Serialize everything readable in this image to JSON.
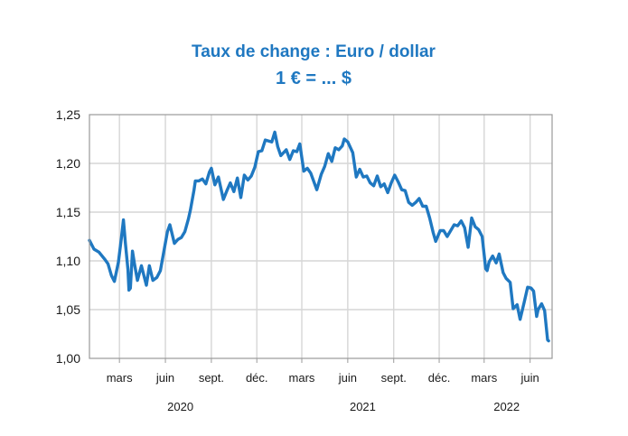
{
  "chart_data": {
    "type": "line",
    "title": "Taux de change : Euro / dollar",
    "subtitle": "1 € = ... $",
    "ylim": [
      1.0,
      1.25
    ],
    "yticks": [
      "1,00",
      "1,05",
      "1,10",
      "1,15",
      "1,20",
      "1,25"
    ],
    "grid": true,
    "x_month_labels": [
      {
        "label": "mars",
        "date": "2020-03-01"
      },
      {
        "label": "juin",
        "date": "2020-06-01"
      },
      {
        "label": "sept.",
        "date": "2020-09-01"
      },
      {
        "label": "déc.",
        "date": "2020-12-01"
      },
      {
        "label": "mars",
        "date": "2021-03-01"
      },
      {
        "label": "juin",
        "date": "2021-06-01"
      },
      {
        "label": "sept.",
        "date": "2021-09-01"
      },
      {
        "label": "déc.",
        "date": "2021-12-01"
      },
      {
        "label": "mars",
        "date": "2022-03-01"
      },
      {
        "label": "juin",
        "date": "2022-06-01"
      }
    ],
    "x_year_labels": [
      {
        "label": "2020",
        "date": "2020-07-01"
      },
      {
        "label": "2021",
        "date": "2021-07-01"
      },
      {
        "label": "2022",
        "date": "2022-04-15"
      }
    ],
    "xlim": [
      "2020-01-01",
      "2022-07-15"
    ],
    "series": [
      {
        "color": "#1f78c1",
        "points": [
          [
            "2020-01-01",
            1.121
          ],
          [
            "2020-01-10",
            1.112
          ],
          [
            "2020-01-20",
            1.109
          ],
          [
            "2020-01-31",
            1.102
          ],
          [
            "2020-02-07",
            1.097
          ],
          [
            "2020-02-14",
            1.085
          ],
          [
            "2020-02-20",
            1.079
          ],
          [
            "2020-02-28",
            1.099
          ],
          [
            "2020-03-05",
            1.124
          ],
          [
            "2020-03-09",
            1.142
          ],
          [
            "2020-03-13",
            1.118
          ],
          [
            "2020-03-18",
            1.091
          ],
          [
            "2020-03-20",
            1.07
          ],
          [
            "2020-03-23",
            1.072
          ],
          [
            "2020-03-27",
            1.11
          ],
          [
            "2020-03-31",
            1.097
          ],
          [
            "2020-04-06",
            1.08
          ],
          [
            "2020-04-14",
            1.095
          ],
          [
            "2020-04-24",
            1.075
          ],
          [
            "2020-04-30",
            1.095
          ],
          [
            "2020-05-07",
            1.08
          ],
          [
            "2020-05-15",
            1.083
          ],
          [
            "2020-05-22",
            1.09
          ],
          [
            "2020-05-29",
            1.11
          ],
          [
            "2020-06-05",
            1.13
          ],
          [
            "2020-06-10",
            1.137
          ],
          [
            "2020-06-19",
            1.118
          ],
          [
            "2020-06-26",
            1.122
          ],
          [
            "2020-07-03",
            1.124
          ],
          [
            "2020-07-10",
            1.13
          ],
          [
            "2020-07-17",
            1.143
          ],
          [
            "2020-07-21",
            1.152
          ],
          [
            "2020-07-28",
            1.172
          ],
          [
            "2020-07-31",
            1.182
          ],
          [
            "2020-08-07",
            1.182
          ],
          [
            "2020-08-14",
            1.184
          ],
          [
            "2020-08-21",
            1.179
          ],
          [
            "2020-08-28",
            1.191
          ],
          [
            "2020-09-01",
            1.195
          ],
          [
            "2020-09-08",
            1.178
          ],
          [
            "2020-09-15",
            1.186
          ],
          [
            "2020-09-25",
            1.163
          ],
          [
            "2020-10-02",
            1.172
          ],
          [
            "2020-10-09",
            1.18
          ],
          [
            "2020-10-16",
            1.171
          ],
          [
            "2020-10-23",
            1.185
          ],
          [
            "2020-10-30",
            1.165
          ],
          [
            "2020-11-06",
            1.188
          ],
          [
            "2020-11-13",
            1.183
          ],
          [
            "2020-11-20",
            1.187
          ],
          [
            "2020-11-27",
            1.196
          ],
          [
            "2020-12-04",
            1.212
          ],
          [
            "2020-12-11",
            1.213
          ],
          [
            "2020-12-18",
            1.224
          ],
          [
            "2020-12-31",
            1.222
          ],
          [
            "2021-01-06",
            1.232
          ],
          [
            "2021-01-12",
            1.217
          ],
          [
            "2021-01-18",
            1.208
          ],
          [
            "2021-01-29",
            1.214
          ],
          [
            "2021-02-05",
            1.204
          ],
          [
            "2021-02-12",
            1.213
          ],
          [
            "2021-02-19",
            1.212
          ],
          [
            "2021-02-25",
            1.22
          ],
          [
            "2021-03-05",
            1.192
          ],
          [
            "2021-03-12",
            1.195
          ],
          [
            "2021-03-19",
            1.19
          ],
          [
            "2021-03-31",
            1.173
          ],
          [
            "2021-04-09",
            1.189
          ],
          [
            "2021-04-16",
            1.197
          ],
          [
            "2021-04-23",
            1.21
          ],
          [
            "2021-04-30",
            1.202
          ],
          [
            "2021-05-07",
            1.216
          ],
          [
            "2021-05-14",
            1.214
          ],
          [
            "2021-05-21",
            1.218
          ],
          [
            "2021-05-25",
            1.225
          ],
          [
            "2021-06-01",
            1.222
          ],
          [
            "2021-06-11",
            1.211
          ],
          [
            "2021-06-18",
            1.186
          ],
          [
            "2021-06-25",
            1.194
          ],
          [
            "2021-07-02",
            1.186
          ],
          [
            "2021-07-09",
            1.187
          ],
          [
            "2021-07-16",
            1.18
          ],
          [
            "2021-07-23",
            1.177
          ],
          [
            "2021-07-30",
            1.187
          ],
          [
            "2021-08-06",
            1.176
          ],
          [
            "2021-08-13",
            1.179
          ],
          [
            "2021-08-20",
            1.17
          ],
          [
            "2021-08-27",
            1.18
          ],
          [
            "2021-09-03",
            1.188
          ],
          [
            "2021-09-10",
            1.181
          ],
          [
            "2021-09-17",
            1.173
          ],
          [
            "2021-09-24",
            1.172
          ],
          [
            "2021-10-01",
            1.16
          ],
          [
            "2021-10-08",
            1.157
          ],
          [
            "2021-10-15",
            1.16
          ],
          [
            "2021-10-22",
            1.164
          ],
          [
            "2021-10-29",
            1.156
          ],
          [
            "2021-11-05",
            1.156
          ],
          [
            "2021-11-12",
            1.144
          ],
          [
            "2021-11-19",
            1.129
          ],
          [
            "2021-11-24",
            1.12
          ],
          [
            "2021-12-03",
            1.131
          ],
          [
            "2021-12-10",
            1.131
          ],
          [
            "2021-12-17",
            1.125
          ],
          [
            "2021-12-31",
            1.137
          ],
          [
            "2022-01-07",
            1.136
          ],
          [
            "2022-01-14",
            1.141
          ],
          [
            "2022-01-21",
            1.134
          ],
          [
            "2022-01-28",
            1.114
          ],
          [
            "2022-02-04",
            1.144
          ],
          [
            "2022-02-11",
            1.135
          ],
          [
            "2022-02-18",
            1.132
          ],
          [
            "2022-02-25",
            1.125
          ],
          [
            "2022-03-04",
            1.092
          ],
          [
            "2022-03-07",
            1.09
          ],
          [
            "2022-03-11",
            1.099
          ],
          [
            "2022-03-18",
            1.105
          ],
          [
            "2022-03-25",
            1.098
          ],
          [
            "2022-03-31",
            1.107
          ],
          [
            "2022-04-08",
            1.088
          ],
          [
            "2022-04-14",
            1.082
          ],
          [
            "2022-04-22",
            1.078
          ],
          [
            "2022-04-28",
            1.051
          ],
          [
            "2022-05-06",
            1.055
          ],
          [
            "2022-05-12",
            1.04
          ],
          [
            "2022-05-20",
            1.057
          ],
          [
            "2022-05-27",
            1.073
          ],
          [
            "2022-06-03",
            1.072
          ],
          [
            "2022-06-08",
            1.069
          ],
          [
            "2022-06-14",
            1.043
          ],
          [
            "2022-06-17",
            1.05
          ],
          [
            "2022-06-24",
            1.056
          ],
          [
            "2022-06-30",
            1.049
          ],
          [
            "2022-07-06",
            1.019
          ],
          [
            "2022-07-08",
            1.018
          ]
        ]
      }
    ]
  }
}
